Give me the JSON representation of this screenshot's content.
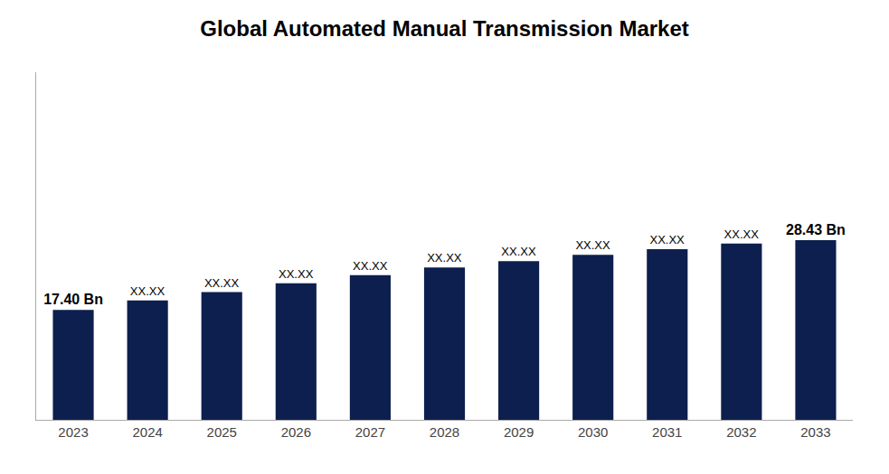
{
  "chart_data": {
    "type": "bar",
    "title": "Global Automated Manual Transmission Market",
    "categories": [
      "2023",
      "2024",
      "2025",
      "2026",
      "2027",
      "2028",
      "2029",
      "2030",
      "2031",
      "2032",
      "2033"
    ],
    "values": [
      17.4,
      18.9,
      20.2,
      21.6,
      22.9,
      24.1,
      25.1,
      26.1,
      27.0,
      27.9,
      28.43
    ],
    "value_labels": [
      "17.40 Bn",
      "XX.XX",
      "XX.XX",
      "XX.XX",
      "XX.XX",
      "XX.XX",
      "XX.XX",
      "XX.XX",
      "XX.XX",
      "XX.XX",
      "28.43 Bn"
    ],
    "data_labels": true,
    "color": "#0d1f4e",
    "ylim": [
      0,
      55
    ],
    "grid": false,
    "tick_labels": "x"
  }
}
